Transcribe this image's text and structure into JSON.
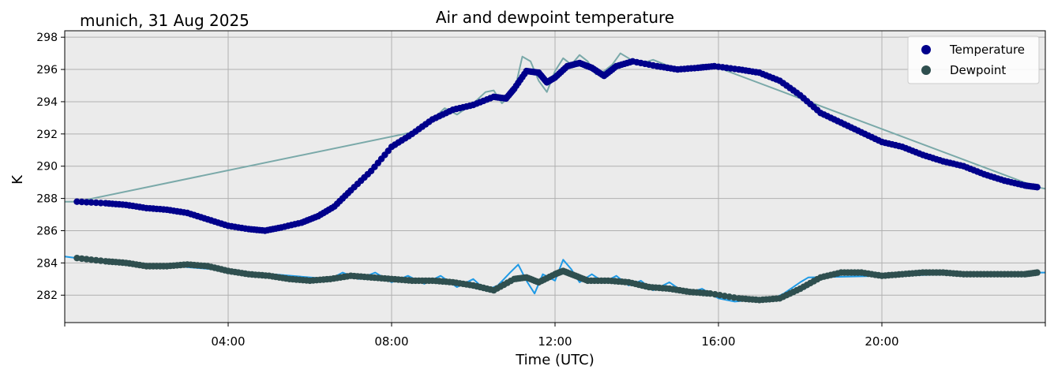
{
  "chart_data": {
    "type": "line",
    "title": "Air and dewpoint temperature",
    "location_label": "munich, 31 Aug 2025",
    "xlabel": "Time (UTC)",
    "ylabel": "K",
    "xlim": [
      0,
      24
    ],
    "ylim": [
      280.3,
      298.4
    ],
    "x_ticks": [
      0,
      4,
      8,
      12,
      16,
      20,
      24
    ],
    "x_tick_labels": [
      "",
      "04:00",
      "08:00",
      "12:00",
      "16:00",
      "20:00",
      ""
    ],
    "y_ticks": [
      282,
      284,
      286,
      288,
      290,
      292,
      294,
      296,
      298
    ],
    "y_tick_labels": [
      "282",
      "284",
      "286",
      "288",
      "290",
      "292",
      "294",
      "296",
      "298"
    ],
    "grid": true,
    "legend_position": "top-right",
    "series": [
      {
        "name": "Temperature",
        "marker_color": "#00008b",
        "raw_color": "#7aa9a9",
        "points": [
          [
            0.3,
            287.8
          ],
          [
            1,
            287.7
          ],
          [
            1.5,
            287.6
          ],
          [
            2,
            287.4
          ],
          [
            2.5,
            287.3
          ],
          [
            3,
            287.1
          ],
          [
            3.5,
            286.7
          ],
          [
            4,
            286.3
          ],
          [
            4.5,
            286.1
          ],
          [
            4.9,
            286.0
          ],
          [
            5.3,
            286.2
          ],
          [
            5.8,
            286.5
          ],
          [
            6.2,
            286.9
          ],
          [
            6.6,
            287.5
          ],
          [
            7,
            288.5
          ],
          [
            7.5,
            289.7
          ],
          [
            8,
            291.2
          ],
          [
            8.5,
            292.0
          ],
          [
            9,
            292.9
          ],
          [
            9.5,
            293.5
          ],
          [
            10,
            293.8
          ],
          [
            10.5,
            294.3
          ],
          [
            10.8,
            294.2
          ],
          [
            11,
            294.8
          ],
          [
            11.3,
            295.9
          ],
          [
            11.6,
            295.8
          ],
          [
            11.8,
            295.2
          ],
          [
            12,
            295.5
          ],
          [
            12.3,
            296.2
          ],
          [
            12.6,
            296.4
          ],
          [
            12.9,
            296.1
          ],
          [
            13.2,
            295.6
          ],
          [
            13.5,
            296.2
          ],
          [
            13.9,
            296.5
          ],
          [
            14.5,
            296.2
          ],
          [
            15,
            296.0
          ],
          [
            15.5,
            296.1
          ],
          [
            15.9,
            296.2
          ],
          [
            16.5,
            296.0
          ],
          [
            17,
            295.8
          ],
          [
            17.5,
            295.3
          ],
          [
            18,
            294.4
          ],
          [
            18.5,
            293.3
          ],
          [
            19,
            292.7
          ],
          [
            19.5,
            292.1
          ],
          [
            20,
            291.5
          ],
          [
            20.5,
            291.2
          ],
          [
            21,
            290.7
          ],
          [
            21.5,
            290.3
          ],
          [
            22,
            290.0
          ],
          [
            22.5,
            289.5
          ],
          [
            23,
            289.1
          ],
          [
            23.5,
            288.8
          ],
          [
            23.8,
            288.7
          ]
        ],
        "raw_points": [
          [
            0,
            287.8
          ],
          [
            0.3,
            287.8
          ],
          [
            8.5,
            292.1
          ],
          [
            9,
            292.9
          ],
          [
            9.3,
            293.6
          ],
          [
            9.6,
            293.2
          ],
          [
            10,
            293.9
          ],
          [
            10.3,
            294.6
          ],
          [
            10.5,
            294.7
          ],
          [
            10.7,
            293.9
          ],
          [
            10.9,
            294.3
          ],
          [
            11,
            294.6
          ],
          [
            11.2,
            296.8
          ],
          [
            11.4,
            296.5
          ],
          [
            11.6,
            295.3
          ],
          [
            11.8,
            294.6
          ],
          [
            12,
            295.9
          ],
          [
            12.2,
            296.7
          ],
          [
            12.4,
            296.3
          ],
          [
            12.6,
            296.9
          ],
          [
            12.8,
            296.5
          ],
          [
            13,
            295.7
          ],
          [
            13.2,
            295.9
          ],
          [
            13.4,
            296.3
          ],
          [
            13.6,
            297.0
          ],
          [
            13.8,
            296.7
          ],
          [
            14,
            296.3
          ],
          [
            14.4,
            296.6
          ],
          [
            14.8,
            296.2
          ],
          [
            15.2,
            296.0
          ],
          [
            15.6,
            296.3
          ],
          [
            15.9,
            296.2
          ],
          [
            23.8,
            288.7
          ],
          [
            24,
            288.6
          ]
        ]
      },
      {
        "name": "Dewpoint",
        "marker_color": "#2f4f4f",
        "raw_color": "#1e9ae6",
        "points": [
          [
            0.3,
            284.3
          ],
          [
            1,
            284.1
          ],
          [
            1.5,
            284.0
          ],
          [
            2,
            283.8
          ],
          [
            2.5,
            283.8
          ],
          [
            3,
            283.9
          ],
          [
            3.5,
            283.8
          ],
          [
            4,
            283.5
          ],
          [
            4.5,
            283.3
          ],
          [
            5,
            283.2
          ],
          [
            5.5,
            283.0
          ],
          [
            6,
            282.9
          ],
          [
            6.5,
            283.0
          ],
          [
            7,
            283.2
          ],
          [
            7.5,
            283.1
          ],
          [
            8,
            283.0
          ],
          [
            8.5,
            282.9
          ],
          [
            9,
            282.9
          ],
          [
            9.5,
            282.8
          ],
          [
            10,
            282.6
          ],
          [
            10.5,
            282.3
          ],
          [
            11,
            283.0
          ],
          [
            11.3,
            283.1
          ],
          [
            11.6,
            282.8
          ],
          [
            12,
            283.3
          ],
          [
            12.2,
            283.5
          ],
          [
            12.5,
            283.2
          ],
          [
            12.8,
            282.9
          ],
          [
            13.3,
            282.9
          ],
          [
            13.8,
            282.8
          ],
          [
            14.3,
            282.5
          ],
          [
            14.8,
            282.4
          ],
          [
            15.3,
            282.2
          ],
          [
            15.8,
            282.1
          ],
          [
            16.5,
            281.8
          ],
          [
            17,
            281.7
          ],
          [
            17.5,
            281.8
          ],
          [
            18,
            282.4
          ],
          [
            18.5,
            283.1
          ],
          [
            19,
            283.4
          ],
          [
            19.5,
            283.4
          ],
          [
            20,
            283.2
          ],
          [
            20.5,
            283.3
          ],
          [
            21,
            283.4
          ],
          [
            21.5,
            283.4
          ],
          [
            22,
            283.3
          ],
          [
            22.5,
            283.3
          ],
          [
            23,
            283.3
          ],
          [
            23.5,
            283.3
          ],
          [
            23.8,
            283.4
          ]
        ],
        "raw_points": [
          [
            0,
            284.4
          ],
          [
            0.3,
            284.3
          ],
          [
            6.5,
            283.0
          ],
          [
            6.8,
            283.4
          ],
          [
            7.2,
            283.0
          ],
          [
            7.6,
            283.4
          ],
          [
            8,
            282.8
          ],
          [
            8.4,
            283.2
          ],
          [
            8.8,
            282.7
          ],
          [
            9.2,
            283.2
          ],
          [
            9.6,
            282.5
          ],
          [
            10,
            283.0
          ],
          [
            10.3,
            282.3
          ],
          [
            10.6,
            282.6
          ],
          [
            10.9,
            283.4
          ],
          [
            11.1,
            283.9
          ],
          [
            11.3,
            282.9
          ],
          [
            11.5,
            282.1
          ],
          [
            11.7,
            283.3
          ],
          [
            12,
            282.9
          ],
          [
            12.2,
            284.2
          ],
          [
            12.4,
            283.6
          ],
          [
            12.6,
            282.8
          ],
          [
            12.9,
            283.3
          ],
          [
            13.2,
            282.8
          ],
          [
            13.5,
            283.2
          ],
          [
            13.8,
            282.6
          ],
          [
            14.1,
            282.9
          ],
          [
            14.4,
            282.3
          ],
          [
            14.8,
            282.8
          ],
          [
            15.2,
            282.1
          ],
          [
            15.6,
            282.4
          ],
          [
            16,
            281.8
          ],
          [
            16.4,
            281.6
          ],
          [
            16.8,
            281.7
          ],
          [
            17.2,
            281.6
          ],
          [
            17.6,
            282.1
          ],
          [
            18,
            282.8
          ],
          [
            18.2,
            283.1
          ],
          [
            23.8,
            283.4
          ],
          [
            24,
            283.4
          ]
        ]
      }
    ]
  }
}
